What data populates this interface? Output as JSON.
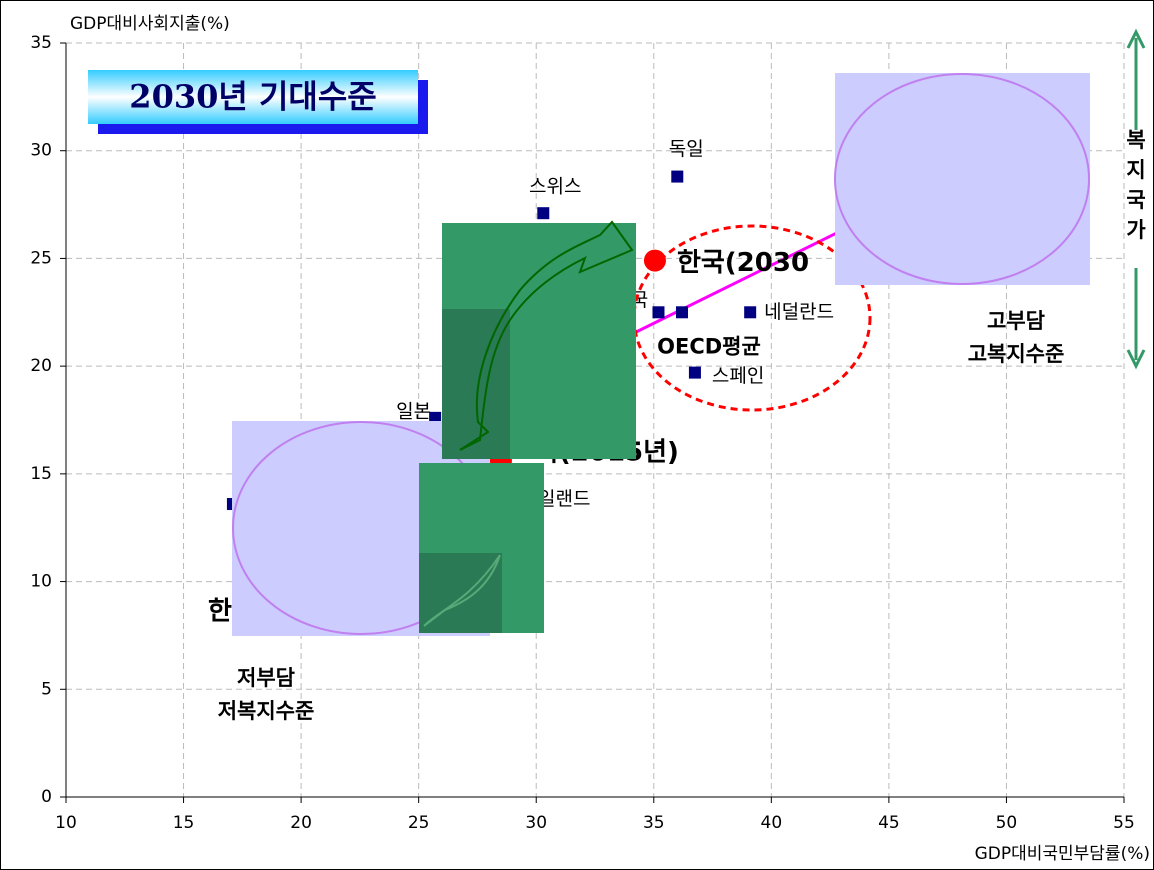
{
  "chart_data": {
    "type": "scatter",
    "y_label": "GDP대비사회지출(%)",
    "x_label": "GDP대비국민부담률(%)",
    "xlim": [
      10,
      55
    ],
    "xticks": [
      10,
      15,
      20,
      25,
      30,
      35,
      40,
      45,
      50,
      55
    ],
    "ylim": [
      0,
      35
    ],
    "yticks": [
      0,
      5,
      10,
      15,
      20,
      25,
      30,
      35
    ],
    "grid": true,
    "series": [
      {
        "color": "#000080",
        "marker": "square",
        "x": [
          36.0,
          30.3,
          39.1,
          35.2,
          36.2,
          36.75,
          25.7,
          17.1,
          29.65
        ],
        "y": [
          28.8,
          27.1,
          22.5,
          22.5,
          22.5,
          19.7,
          17.6,
          13.6,
          13.8
        ],
        "labels": [
          "독일",
          "스위스",
          "네덜란드",
          "국",
          "OECD평균",
          "스페인",
          "일본",
          null,
          "일랜드"
        ]
      },
      {
        "color": "#ff0000",
        "marker": "circle",
        "x": [
          35.05,
          28.5
        ],
        "y": [
          24.9,
          15.6
        ],
        "labels": [
          "한국(2030",
          "국(2015년)"
        ]
      }
    ],
    "trend_line": {
      "color": "#ff00ff",
      "x": [
        32.7,
        43.0
      ],
      "y": [
        20.75,
        26.3
      ]
    },
    "title_box": "2030년 기대수준",
    "annotations": [
      "고부담",
      "고복지수준",
      "저부담",
      "저복지수준",
      "한"
    ],
    "side_label": [
      "복",
      "지",
      "국",
      "가"
    ]
  }
}
